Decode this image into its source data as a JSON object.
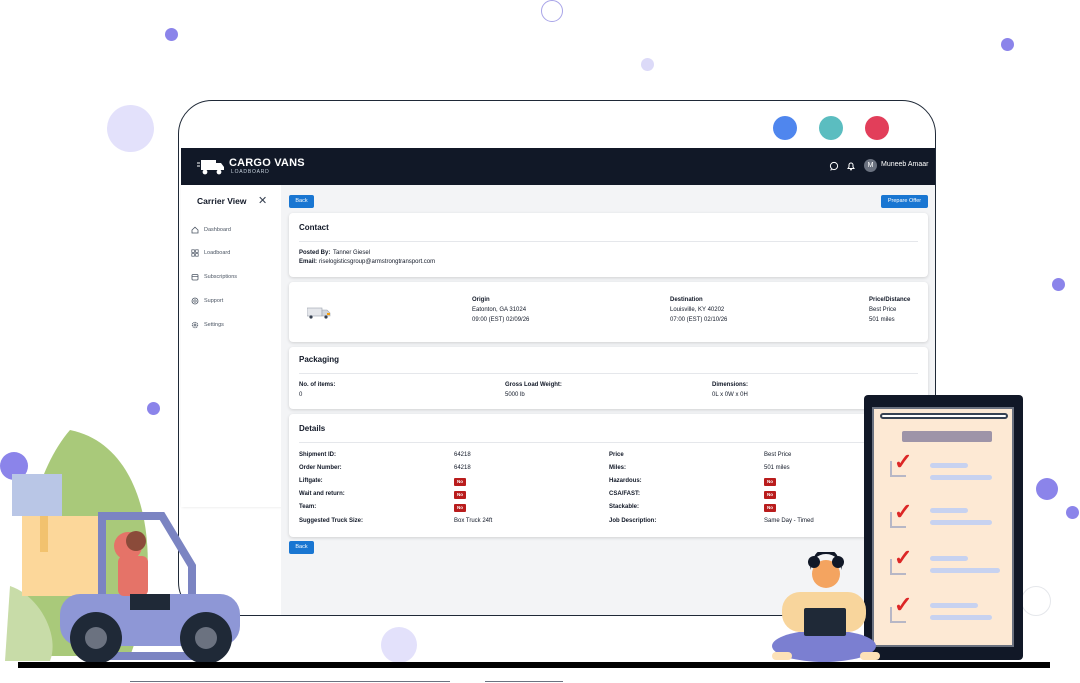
{
  "app": {
    "brand": "CARGO VANS",
    "brand_sub": "LOADBOARD",
    "user": "Muneeb Amaar",
    "avatar_initial": "M"
  },
  "sidebar": {
    "title": "Carrier View",
    "close_icon": "close-icon",
    "items": [
      {
        "label": "Dashboard",
        "icon": "home-icon"
      },
      {
        "label": "Loadboard",
        "icon": "grid-icon"
      },
      {
        "label": "Subscriptions",
        "icon": "calendar-icon"
      },
      {
        "label": "Support",
        "icon": "support-icon"
      },
      {
        "label": "Settings",
        "icon": "gear-icon"
      }
    ]
  },
  "actions": {
    "back": "Back",
    "prepare_offer": "Prepare Offer",
    "back_bottom": "Back"
  },
  "contact": {
    "title": "Contact",
    "posted_by_label": "Posted By:",
    "posted_by": "Tanner Giesel",
    "email_label": "Email:",
    "email": "riselogisticsgroup@armstrongtransport.com"
  },
  "route": {
    "origin_label": "Origin",
    "origin_city": "Eatonton, GA 31024",
    "origin_time": "09:00 (EST) 02/09/26",
    "destination_label": "Destination",
    "destination_city": "Louisville, KY 40202",
    "destination_time": "07:00 (EST) 02/10/26",
    "price_label": "Price/Distance",
    "price": "Best Price",
    "distance": "501 miles"
  },
  "packaging": {
    "title": "Packaging",
    "items_label": "No. of items:",
    "items": "0",
    "weight_label": "Gross Load Weight:",
    "weight": "5000 lb",
    "dimensions_label": "Dimensions:",
    "dimensions": "0L x 0W x 0H"
  },
  "details": {
    "title": "Details",
    "shipment_id_label": "Shipment ID:",
    "shipment_id": "64218",
    "order_number_label": "Order Number:",
    "order_number": "64218",
    "liftgate_label": "Liftgate:",
    "liftgate": "No",
    "wait_return_label": "Wait and return:",
    "wait_return": "No",
    "team_label": "Team:",
    "team": "No",
    "truck_size_label": "Suggested Truck Size:",
    "truck_size": "Box Truck 24ft",
    "price_label": "Price",
    "price": "Best Price",
    "miles_label": "Miles:",
    "miles": "501 miles",
    "hazardous_label": "Hazardous:",
    "hazardous": "No",
    "csa_fast_label": "CSA/FAST:",
    "csa_fast": "No",
    "stackable_label": "Stackable:",
    "stackable": "No",
    "job_description_label": "Job Description:",
    "job_description": "Same Day - Timed"
  },
  "colors": {
    "primary": "#1976d2",
    "header": "#111827",
    "badge_no": "#b91c1c",
    "cam_blue": "#4f86ee",
    "cam_teal": "#5bbdc0",
    "cam_red": "#e23e5a",
    "decor_purple": "#8b84ea"
  }
}
